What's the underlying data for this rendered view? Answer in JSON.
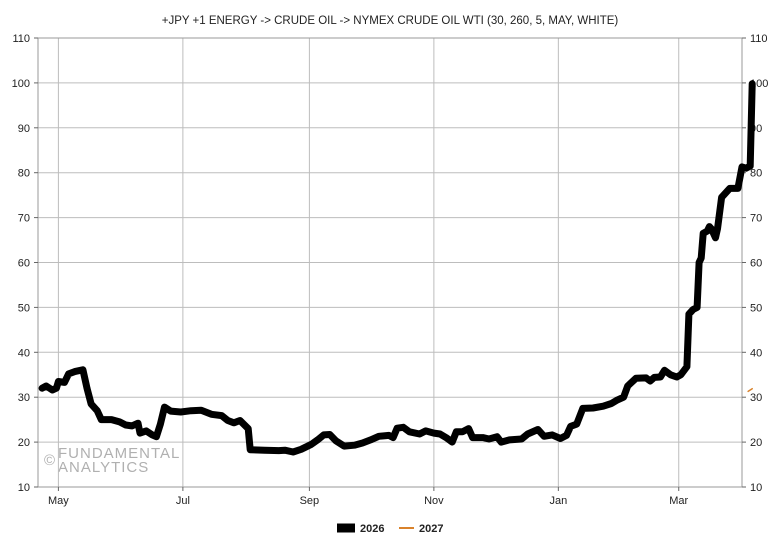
{
  "watermark": {
    "symbol": "©",
    "line1": "FUNDAMENTAL",
    "line2": "ANALYTICS"
  },
  "chart_data": {
    "type": "line",
    "title": "+JPY +1 ENERGY -> CRUDE OIL -> NYMEX CRUDE OIL WTI (30, 260, 5, MAY, WHITE)",
    "xlabel": "",
    "ylabel": "",
    "ylim": [
      10,
      110
    ],
    "yticks": [
      10,
      20,
      30,
      40,
      50,
      60,
      70,
      80,
      90,
      100,
      110
    ],
    "xlim": [
      "2025-04-21",
      "2026-04-01"
    ],
    "xticks": [
      {
        "label": "May",
        "date": "2025-05-01"
      },
      {
        "label": "Jul",
        "date": "2025-07-01"
      },
      {
        "label": "Sep",
        "date": "2025-09-01"
      },
      {
        "label": "Nov",
        "date": "2025-11-01"
      },
      {
        "label": "Jan",
        "date": "2026-01-01"
      },
      {
        "label": "Mar",
        "date": "2026-03-01"
      }
    ],
    "grid": true,
    "legend_position": "bottom-center",
    "series": [
      {
        "name": "2026",
        "color": "#000000",
        "points": [
          [
            "2025-04-23",
            32
          ],
          [
            "2025-04-25",
            32.5
          ],
          [
            "2025-04-28",
            31.6
          ],
          [
            "2025-04-30",
            32
          ],
          [
            "2025-05-01",
            33.5
          ],
          [
            "2025-05-04",
            33.3
          ],
          [
            "2025-05-06",
            35.2
          ],
          [
            "2025-05-09",
            35.7
          ],
          [
            "2025-05-13",
            36.1
          ],
          [
            "2025-05-15",
            32
          ],
          [
            "2025-05-17",
            28.5
          ],
          [
            "2025-05-20",
            27
          ],
          [
            "2025-05-22",
            25
          ],
          [
            "2025-05-27",
            25
          ],
          [
            "2025-05-31",
            24.5
          ],
          [
            "2025-06-03",
            23.8
          ],
          [
            "2025-06-06",
            23.6
          ],
          [
            "2025-06-09",
            24.2
          ],
          [
            "2025-06-10",
            22
          ],
          [
            "2025-06-13",
            22.5
          ],
          [
            "2025-06-16",
            21.6
          ],
          [
            "2025-06-18",
            21.2
          ],
          [
            "2025-06-20",
            24
          ],
          [
            "2025-06-22",
            27.8
          ],
          [
            "2025-06-25",
            26.9
          ],
          [
            "2025-06-30",
            26.7
          ],
          [
            "2025-07-05",
            27
          ],
          [
            "2025-07-10",
            27.1
          ],
          [
            "2025-07-15",
            26.2
          ],
          [
            "2025-07-20",
            25.9
          ],
          [
            "2025-07-23",
            24.8
          ],
          [
            "2025-07-26",
            24.3
          ],
          [
            "2025-07-29",
            24.8
          ],
          [
            "2025-08-02",
            23
          ],
          [
            "2025-08-03",
            18.3
          ],
          [
            "2025-08-10",
            18.2
          ],
          [
            "2025-08-17",
            18.1
          ],
          [
            "2025-08-20",
            18.2
          ],
          [
            "2025-08-24",
            17.8
          ],
          [
            "2025-08-28",
            18.4
          ],
          [
            "2025-09-02",
            19.5
          ],
          [
            "2025-09-05",
            20.5
          ],
          [
            "2025-09-08",
            21.6
          ],
          [
            "2025-09-11",
            21.7
          ],
          [
            "2025-09-14",
            20.3
          ],
          [
            "2025-09-18",
            19.1
          ],
          [
            "2025-09-23",
            19.3
          ],
          [
            "2025-09-27",
            19.8
          ],
          [
            "2025-10-01",
            20.5
          ],
          [
            "2025-10-05",
            21.3
          ],
          [
            "2025-10-10",
            21.5
          ],
          [
            "2025-10-12",
            21
          ],
          [
            "2025-10-14",
            23.1
          ],
          [
            "2025-10-17",
            23.3
          ],
          [
            "2025-10-20",
            22.3
          ],
          [
            "2025-10-25",
            21.8
          ],
          [
            "2025-10-28",
            22.5
          ],
          [
            "2025-11-01",
            22
          ],
          [
            "2025-11-04",
            21.8
          ],
          [
            "2025-11-07",
            21
          ],
          [
            "2025-11-10",
            20
          ],
          [
            "2025-11-12",
            22.3
          ],
          [
            "2025-11-15",
            22.3
          ],
          [
            "2025-11-18",
            23
          ],
          [
            "2025-11-20",
            21
          ],
          [
            "2025-11-25",
            21
          ],
          [
            "2025-11-28",
            20.7
          ],
          [
            "2025-12-02",
            21.2
          ],
          [
            "2025-12-04",
            20
          ],
          [
            "2025-12-08",
            20.5
          ],
          [
            "2025-12-14",
            20.7
          ],
          [
            "2025-12-17",
            21.8
          ],
          [
            "2025-12-22",
            22.8
          ],
          [
            "2025-12-25",
            21.3
          ],
          [
            "2025-12-29",
            21.6
          ],
          [
            "2026-01-02",
            20.8
          ],
          [
            "2026-01-05",
            21.5
          ],
          [
            "2026-01-07",
            23.5
          ],
          [
            "2026-01-10",
            24
          ],
          [
            "2026-01-13",
            27.5
          ],
          [
            "2026-01-18",
            27.6
          ],
          [
            "2026-01-23",
            28
          ],
          [
            "2026-01-27",
            28.6
          ],
          [
            "2026-01-30",
            29.4
          ],
          [
            "2026-02-02",
            30
          ],
          [
            "2026-02-04",
            32.5
          ],
          [
            "2026-02-08",
            34.2
          ],
          [
            "2026-02-13",
            34.3
          ],
          [
            "2026-02-15",
            33.6
          ],
          [
            "2026-02-17",
            34.4
          ],
          [
            "2026-02-20",
            34.5
          ],
          [
            "2026-02-22",
            36
          ],
          [
            "2026-02-25",
            35
          ],
          [
            "2026-02-28",
            34.5
          ],
          [
            "2026-03-02",
            35
          ],
          [
            "2026-03-05",
            36.8
          ],
          [
            "2026-03-06",
            48.5
          ],
          [
            "2026-03-08",
            49.5
          ],
          [
            "2026-03-10",
            50
          ],
          [
            "2026-03-11",
            60
          ],
          [
            "2026-03-12",
            61
          ],
          [
            "2026-03-13",
            66.5
          ],
          [
            "2026-03-15",
            67
          ],
          [
            "2026-03-16",
            68
          ],
          [
            "2026-03-17",
            67.5
          ],
          [
            "2026-03-19",
            65.5
          ],
          [
            "2026-03-20",
            67.5
          ],
          [
            "2026-03-22",
            74.5
          ],
          [
            "2026-03-24",
            75.5
          ],
          [
            "2026-03-26",
            76.5
          ],
          [
            "2026-03-30",
            76.5
          ],
          [
            "2026-04-01",
            81.3
          ],
          [
            "2026-04-03",
            81
          ],
          [
            "2026-04-05",
            81.5
          ],
          [
            "2026-04-06",
            99.8
          ]
        ]
      },
      {
        "name": "2027",
        "color": "#d9822b",
        "points": [
          [
            "2026-04-04",
            31.3
          ],
          [
            "2026-04-06",
            31.9
          ]
        ]
      }
    ]
  }
}
